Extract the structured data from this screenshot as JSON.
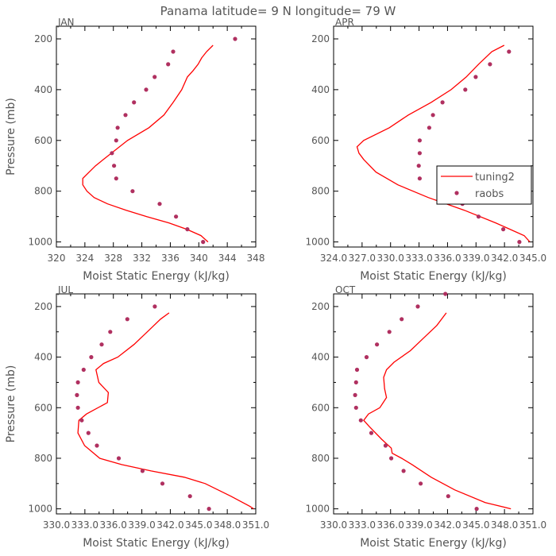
{
  "title": "Panama  latitude= 9 N longitude= 79 W",
  "colors": {
    "model": "#ff0000",
    "obs": "#b03060",
    "axis": "#000000",
    "text": "#555555"
  },
  "legend": {
    "items": [
      {
        "label": "tuning2",
        "kind": "line"
      },
      {
        "label": "raobs",
        "kind": "marker"
      }
    ],
    "placement": "inside-right of APR panel"
  },
  "chart_data": [
    {
      "type": "line",
      "panel_label": "JAN",
      "xlabel": "Moist Static Energy (kJ/kg)",
      "ylabel": "Pressure (mb)",
      "xlim": [
        320,
        348
      ],
      "ylim": [
        1020,
        200
      ],
      "xticks": [
        "320",
        "324",
        "328",
        "332",
        "336",
        "340",
        "344",
        "348"
      ],
      "yticks": [
        "200",
        "400",
        "600",
        "800",
        "1000"
      ],
      "series": [
        {
          "name": "tuning2",
          "kind": "line",
          "x": [
            341.3,
            340.3,
            338.3,
            335.8,
            332.7,
            329.8,
            327.2,
            325.3,
            324.3,
            323.7,
            323.7,
            324.6,
            325.5,
            326.6,
            330.0,
            333.0,
            335.1,
            336.4,
            337.6,
            338.4,
            339.2,
            339.9,
            340.4,
            341.1,
            342.0
          ],
          "y": [
            1000,
            975,
            950,
            925,
            900,
            875,
            850,
            825,
            800,
            775,
            750,
            725,
            700,
            675,
            600,
            550,
            500,
            450,
            400,
            350,
            325,
            300,
            275,
            250,
            225
          ]
        },
        {
          "name": "raobs",
          "kind": "marker",
          "x": [
            340.6,
            338.4,
            336.8,
            334.5,
            330.7,
            328.4,
            328.1,
            327.8,
            328.4,
            328.6,
            329.7,
            330.9,
            332.6,
            333.8,
            335.7,
            336.4,
            345.1
          ],
          "y": [
            1000,
            950,
            900,
            850,
            800,
            750,
            700,
            650,
            600,
            550,
            500,
            450,
            400,
            350,
            300,
            250,
            200
          ]
        }
      ]
    },
    {
      "type": "line",
      "panel_label": "APR",
      "xlabel": "Moist Static Energy (kJ/kg)",
      "ylabel": "",
      "xlim": [
        324.03,
        345.03
      ],
      "ylim": [
        1020,
        200
      ],
      "xticks": [
        "324.0",
        "327.0",
        "330.0",
        "333.0",
        "336.0",
        "339.0",
        "342.0",
        "345.0"
      ],
      "yticks": [
        "200",
        "400",
        "600",
        "800",
        "1000"
      ],
      "series": [
        {
          "name": "tuning2",
          "kind": "line",
          "x": [
            344.7,
            344.1,
            341.1,
            337.8,
            334.0,
            330.8,
            328.5,
            327.2,
            326.7,
            326.5,
            327.2,
            329.9,
            331.9,
            334.3,
            336.4,
            338.0,
            339.3,
            340.7,
            342.0
          ],
          "y": [
            1000,
            975,
            925,
            875,
            825,
            775,
            725,
            675,
            650,
            625,
            600,
            550,
            500,
            450,
            400,
            350,
            300,
            250,
            225
          ]
        },
        {
          "name": "raobs",
          "kind": "marker",
          "x": [
            343.6,
            341.9,
            339.3,
            337.6,
            335.3,
            333.1,
            333.0,
            333.1,
            333.1,
            334.1,
            334.5,
            335.5,
            337.9,
            339.0,
            340.5,
            342.5
          ],
          "y": [
            1000,
            950,
            900,
            850,
            800,
            750,
            700,
            650,
            600,
            550,
            500,
            450,
            400,
            350,
            300,
            250
          ]
        }
      ]
    },
    {
      "type": "line",
      "panel_label": "JUL",
      "xlabel": "Moist Static Energy (kJ/kg)",
      "ylabel": "Pressure (mb)",
      "xlim": [
        330.03,
        351.03
      ],
      "ylim": [
        1020,
        200
      ],
      "xticks": [
        "330.0",
        "333.0",
        "336.0",
        "339.0",
        "342.0",
        "345.0",
        "348.0",
        "351.0"
      ],
      "yticks": [
        "200",
        "400",
        "600",
        "800",
        "1000"
      ],
      "series": [
        {
          "name": "tuning2",
          "kind": "line",
          "x": [
            350.8,
            350.4,
            348.4,
            345.7,
            343.5,
            340.0,
            336.9,
            334.6,
            333.0,
            332.3,
            332.4,
            333.2,
            335.4,
            335.5,
            334.5,
            334.2,
            335.0,
            336.5,
            338.2,
            339.6,
            341.0,
            341.9
          ],
          "y": [
            1000,
            990,
            950,
            900,
            875,
            850,
            825,
            800,
            750,
            700,
            650,
            625,
            580,
            540,
            500,
            450,
            425,
            400,
            350,
            300,
            250,
            225
          ]
        },
        {
          "name": "raobs",
          "kind": "marker",
          "x": [
            346.1,
            344.1,
            341.2,
            339.1,
            336.6,
            334.3,
            333.4,
            332.7,
            332.3,
            332.2,
            332.3,
            332.9,
            333.7,
            334.8,
            335.7,
            337.5,
            340.4
          ],
          "y": [
            1000,
            950,
            900,
            850,
            800,
            750,
            700,
            650,
            600,
            550,
            500,
            450,
            400,
            350,
            300,
            250,
            200
          ]
        }
      ]
    },
    {
      "type": "line",
      "panel_label": "OCT",
      "xlabel": "Moist Static Energy (kJ/kg)",
      "ylabel": "",
      "xlim": [
        330.03,
        351.03
      ],
      "ylim": [
        1020,
        200
      ],
      "xticks": [
        "330.0",
        "333.0",
        "336.0",
        "339.0",
        "342.0",
        "345.0",
        "348.0",
        "351.0"
      ],
      "yticks": [
        "200",
        "400",
        "600",
        "800",
        "1000"
      ],
      "series": [
        {
          "name": "tuning2",
          "kind": "line",
          "x": [
            348.7,
            346.0,
            342.8,
            340.3,
            338.3,
            337.2,
            336.2,
            336.1,
            335.1,
            333.8,
            333.2,
            333.7,
            334.9,
            335.6,
            335.4,
            335.3,
            335.6,
            336.4,
            338.1,
            339.5,
            340.9,
            341.9
          ],
          "y": [
            1000,
            975,
            925,
            875,
            825,
            800,
            780,
            760,
            725,
            675,
            650,
            625,
            600,
            560,
            525,
            480,
            450,
            420,
            375,
            325,
            275,
            225
          ]
        },
        {
          "name": "raobs",
          "kind": "marker",
          "x": [
            345.1,
            342.1,
            339.2,
            337.4,
            336.1,
            335.5,
            334.0,
            332.9,
            332.4,
            332.3,
            332.4,
            332.5,
            333.5,
            334.6,
            335.9,
            337.2,
            338.9,
            341.8
          ],
          "y": [
            1000,
            950,
            900,
            850,
            800,
            750,
            700,
            650,
            600,
            550,
            500,
            450,
            400,
            350,
            300,
            250,
            200,
            150
          ]
        }
      ]
    }
  ]
}
